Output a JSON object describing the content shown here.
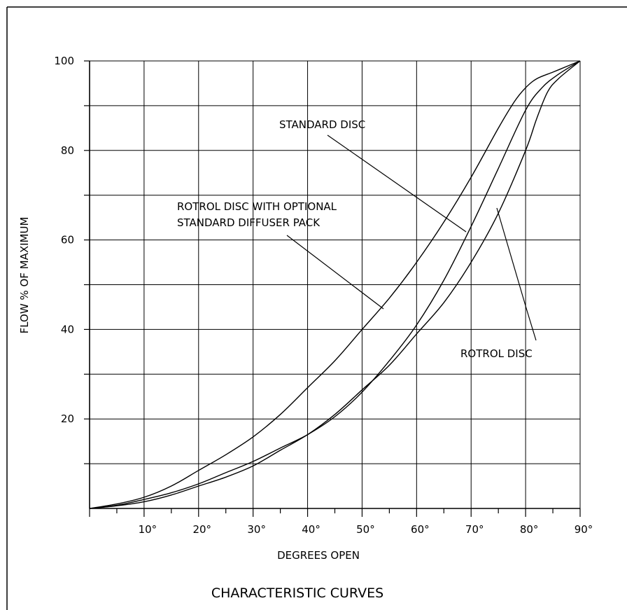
{
  "chart_data": {
    "type": "line",
    "title": "CHARACTERISTIC CURVES",
    "xlabel": "DEGREES OPEN",
    "ylabel": "FLOW % OF MAXIMUM",
    "xlim": [
      0,
      90
    ],
    "ylim": [
      0,
      100
    ],
    "grid": true,
    "x_ticks": [
      10,
      20,
      30,
      40,
      50,
      60,
      70,
      80,
      90
    ],
    "x_tick_labels": [
      "10°",
      "20°",
      "30°",
      "40°",
      "50°",
      "60°",
      "70°",
      "80°",
      "90°"
    ],
    "y_ticks": [
      20,
      40,
      60,
      80,
      100
    ],
    "y_tick_labels": [
      "20",
      "40",
      "60",
      "80",
      "100"
    ],
    "series": [
      {
        "name": "STANDARD DISC",
        "x": [
          0,
          5,
          10,
          15,
          20,
          25,
          30,
          35,
          40,
          45,
          50,
          55,
          60,
          65,
          70,
          75,
          78,
          80,
          82,
          85,
          88,
          90
        ],
        "y": [
          0,
          1,
          2.5,
          5,
          8.5,
          12,
          16,
          21,
          27,
          33,
          40,
          47,
          55,
          64,
          74,
          85,
          91,
          94,
          96,
          97.5,
          99,
          100
        ]
      },
      {
        "name": "ROTROL DISC WITH OPTIONAL STANDARD DIFFUSER PACK",
        "x": [
          0,
          5,
          10,
          15,
          20,
          25,
          30,
          35,
          40,
          45,
          50,
          55,
          60,
          65,
          70,
          75,
          80,
          83,
          86,
          90
        ],
        "y": [
          0,
          0.7,
          2,
          3.5,
          5.5,
          8,
          10.5,
          13.5,
          16.5,
          20.5,
          26,
          33,
          41,
          51,
          63,
          76,
          89,
          94,
          97,
          100
        ]
      },
      {
        "name": "ROTROL DISC",
        "x": [
          0,
          5,
          10,
          15,
          20,
          25,
          30,
          35,
          40,
          45,
          50,
          55,
          60,
          65,
          70,
          75,
          80,
          82,
          84,
          86,
          90
        ],
        "y": [
          0,
          0.6,
          1.5,
          3,
          5,
          7,
          9.5,
          13,
          16.5,
          21,
          26.5,
          32,
          39,
          46,
          55,
          66,
          80,
          87,
          93,
          96,
          100
        ]
      }
    ],
    "annotations": [
      {
        "text": "STANDARD DISC"
      },
      {
        "text": "ROTROL DISC WITH OPTIONAL"
      },
      {
        "text": "STANDARD DIFFUSER PACK"
      },
      {
        "text": "ROTROL DISC"
      }
    ]
  }
}
